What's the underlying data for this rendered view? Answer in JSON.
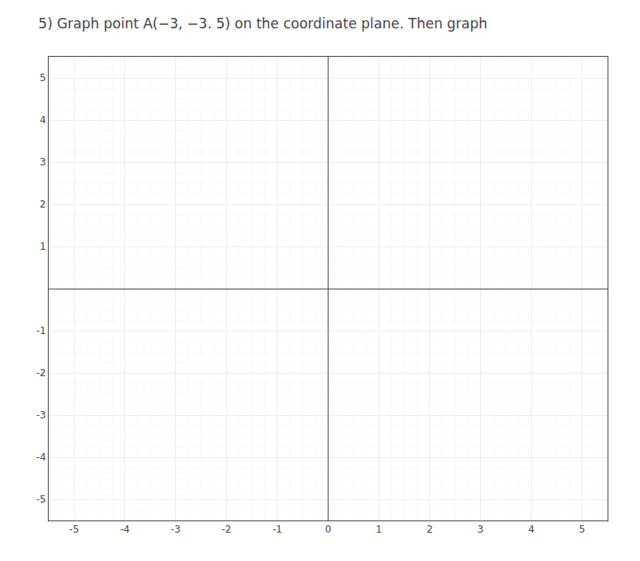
{
  "chart_data": {
    "type": "scatter",
    "title": "5) Graph point A(−3, −3. 5) on the coordinate plane. Then graph",
    "xlim": [
      -5.5,
      5.5
    ],
    "ylim": [
      -5.5,
      5.5
    ],
    "xticks": [
      -5,
      -4,
      -3,
      -2,
      -1,
      0,
      1,
      2,
      3,
      4,
      5
    ],
    "yticks": [
      -5,
      -4,
      -3,
      -2,
      -1,
      1,
      2,
      3,
      4,
      5
    ],
    "grid": true
  }
}
